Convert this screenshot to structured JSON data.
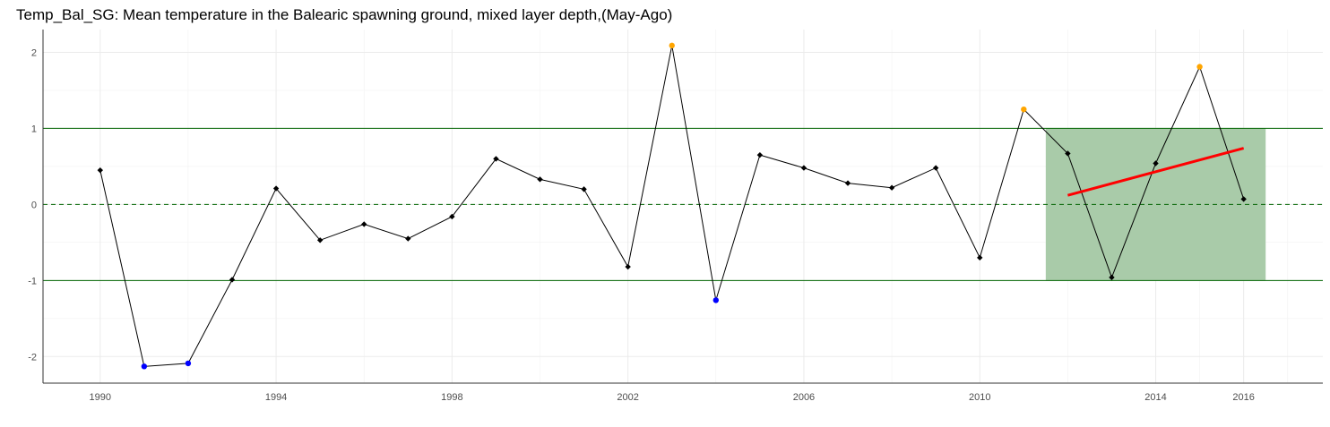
{
  "chart_data": {
    "type": "line",
    "title": "Temp_Bal_SG: Mean temperature in the Balearic spawning ground, mixed layer depth,(May-Ago)",
    "xlabel": "",
    "ylabel": "",
    "xlim": [
      1988.7,
      2017.8
    ],
    "ylim": [
      -2.35,
      2.3
    ],
    "x_ticks": [
      1990,
      1994,
      1998,
      2002,
      2006,
      2010,
      2014,
      2016
    ],
    "x_tick_labels": [
      "1990",
      "1994",
      "1998",
      "2002",
      "2006",
      "2010",
      "2014",
      "2016"
    ],
    "y_ticks": [
      -2,
      -1,
      0,
      1,
      2
    ],
    "y_tick_labels": [
      "-2",
      "-1",
      "0",
      "1",
      "2"
    ],
    "grid": true,
    "series": [
      {
        "color": "#000000",
        "x": [
          1990,
          1991,
          1992,
          1993,
          1994,
          1995,
          1996,
          1997,
          1998,
          1999,
          2000,
          2001,
          2002,
          2003,
          2004,
          2005,
          2006,
          2007,
          2008,
          2009,
          2010,
          2011,
          2012,
          2013,
          2014,
          2015,
          2016
        ],
        "y": [
          0.45,
          -2.13,
          -2.09,
          -0.99,
          0.21,
          -0.47,
          -0.26,
          -0.45,
          -0.16,
          0.6,
          0.33,
          0.2,
          -0.82,
          2.09,
          -1.26,
          0.65,
          0.48,
          0.28,
          0.22,
          0.48,
          -0.7,
          1.25,
          0.67,
          -0.96,
          0.54,
          1.81,
          0.07
        ]
      }
    ],
    "point_colors": {
      "high": "#FFA500",
      "low": "#0000FF",
      "normal": "#000000"
    },
    "thresholds": {
      "upper": 1,
      "lower": -1,
      "mean": 0,
      "color": "#006400"
    },
    "highlight_band": {
      "x_range": [
        2011.5,
        2016.5
      ],
      "y_range": [
        -1,
        1
      ],
      "color": "#A9CBA9"
    },
    "trend_line": {
      "x": [
        2012,
        2016
      ],
      "y": [
        0.12,
        0.74
      ],
      "color": "#FF0000"
    }
  }
}
